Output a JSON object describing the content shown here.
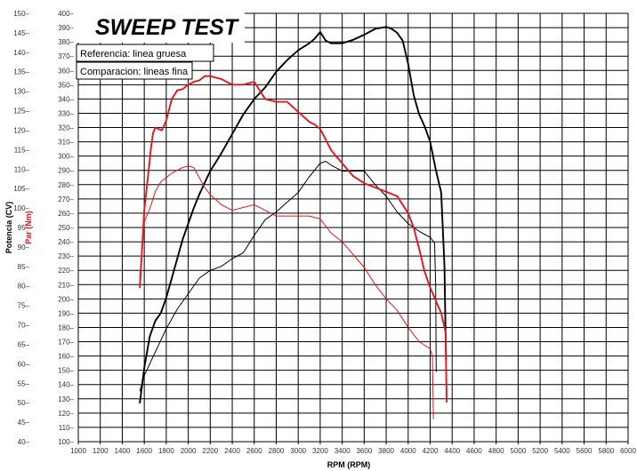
{
  "chart_data": {
    "type": "line",
    "title": "SWEEP TEST",
    "legend": [
      "Referencia: linea gruesa",
      "Comparacion: lineas fina"
    ],
    "xlabel": "RPM (RPM)",
    "ylabel_left": "Potencia (CV)",
    "ylabel_right": "Par (Nm)",
    "x_range": [
      1000,
      6000
    ],
    "x_ticks": [
      1000,
      1200,
      1400,
      1600,
      1800,
      2000,
      2200,
      2400,
      2600,
      2800,
      3000,
      3200,
      3400,
      3600,
      3800,
      4000,
      4200,
      4400,
      4600,
      4800,
      5000,
      5200,
      5400,
      5600,
      5800,
      6000
    ],
    "y_left_range": [
      40,
      150
    ],
    "y_left_ticks": [
      40,
      45,
      50,
      55,
      60,
      65,
      70,
      75,
      80,
      85,
      90,
      95,
      100,
      105,
      110,
      115,
      120,
      125,
      130,
      135,
      140,
      145,
      150
    ],
    "y_right_range": [
      100,
      400
    ],
    "y_right_ticks": [
      100,
      110,
      120,
      130,
      140,
      150,
      160,
      170,
      180,
      190,
      200,
      210,
      220,
      230,
      240,
      250,
      260,
      270,
      280,
      290,
      300,
      310,
      320,
      330,
      340,
      350,
      360,
      370,
      380,
      390,
      400
    ],
    "grid": true,
    "colors": {
      "power": "#000000",
      "torque": "#e8141b",
      "grid": "#000000"
    },
    "series": [
      {
        "kind": "power",
        "axis": "left",
        "variant": "thick",
        "x": [
          1560,
          1600,
          1650,
          1700,
          1750,
          1800,
          1850,
          1900,
          1950,
          2000,
          2050,
          2100,
          2150,
          2200,
          2300,
          2400,
          2500,
          2550,
          2600,
          2700,
          2800,
          2900,
          3000,
          3100,
          3150,
          3200,
          3250,
          3300,
          3400,
          3500,
          3600,
          3700,
          3800,
          3850,
          3900,
          3950,
          4000,
          4050,
          4100,
          4150,
          4200,
          4250,
          4300,
          4330,
          4340,
          4345
        ],
        "y": [
          50,
          59,
          67,
          71,
          73,
          77,
          82,
          87,
          92,
          96,
          100,
          103.5,
          106.5,
          109.5,
          114,
          119,
          124,
          126,
          128,
          131,
          135,
          138,
          140.5,
          142.3,
          143.5,
          145.2,
          143,
          142.3,
          142.3,
          143.2,
          144.5,
          146,
          146.5,
          146,
          145,
          143,
          137,
          129,
          124,
          121,
          117,
          110,
          104,
          85,
          68,
          61
        ]
      },
      {
        "kind": "power",
        "axis": "left",
        "variant": "thin",
        "x": [
          1560,
          1600,
          1700,
          1800,
          1900,
          2000,
          2100,
          2200,
          2300,
          2400,
          2500,
          2600,
          2700,
          2800,
          2900,
          3000,
          3100,
          3200,
          3250,
          3300,
          3400,
          3500,
          3600,
          3700,
          3800,
          3900,
          4000,
          4100,
          4200,
          4240,
          4250,
          4255
        ],
        "y": [
          53,
          57,
          63,
          69,
          74,
          78,
          82,
          84,
          85,
          87,
          88.5,
          93,
          97,
          99,
          101.5,
          104,
          108,
          111.5,
          112,
          111,
          109.5,
          109.5,
          109.5,
          106,
          103,
          99,
          96,
          94,
          92.5,
          91,
          80,
          58
        ]
      },
      {
        "kind": "torque",
        "axis": "right",
        "variant": "thick",
        "x": [
          1560,
          1600,
          1640,
          1660,
          1680,
          1700,
          1730,
          1760,
          1800,
          1850,
          1900,
          1950,
          2000,
          2050,
          2100,
          2150,
          2200,
          2300,
          2400,
          2500,
          2600,
          2650,
          2700,
          2800,
          2900,
          3000,
          3100,
          3150,
          3200,
          3300,
          3400,
          3500,
          3600,
          3700,
          3800,
          3900,
          4000,
          4050,
          4100,
          4150,
          4200,
          4300,
          4340,
          4350
        ],
        "y": [
          208,
          262,
          290,
          305,
          316,
          320,
          319,
          318,
          325,
          340,
          346,
          347,
          350,
          352,
          353,
          356,
          356,
          354,
          350,
          350,
          352,
          346,
          340,
          338,
          338,
          331,
          324,
          322,
          319,
          304,
          295,
          286,
          281,
          278,
          275,
          272,
          260,
          250,
          235,
          219,
          208,
          190,
          177,
          128
        ]
      },
      {
        "kind": "torque",
        "axis": "right",
        "variant": "thin",
        "x": [
          1560,
          1600,
          1650,
          1700,
          1750,
          1800,
          1850,
          1900,
          1950,
          2000,
          2050,
          2100,
          2150,
          2200,
          2300,
          2400,
          2500,
          2600,
          2700,
          2800,
          2900,
          3000,
          3100,
          3200,
          3300,
          3400,
          3500,
          3600,
          3700,
          3800,
          3900,
          4000,
          4100,
          4200,
          4220,
          4230
        ],
        "y": [
          215,
          254,
          263,
          275,
          282,
          285,
          288,
          290,
          292,
          293,
          292,
          285,
          278,
          273,
          266,
          262,
          264,
          266,
          262,
          258,
          258,
          258,
          258,
          256,
          246,
          240,
          231,
          222,
          210,
          200,
          192,
          180,
          170,
          165,
          160,
          116
        ]
      }
    ]
  }
}
